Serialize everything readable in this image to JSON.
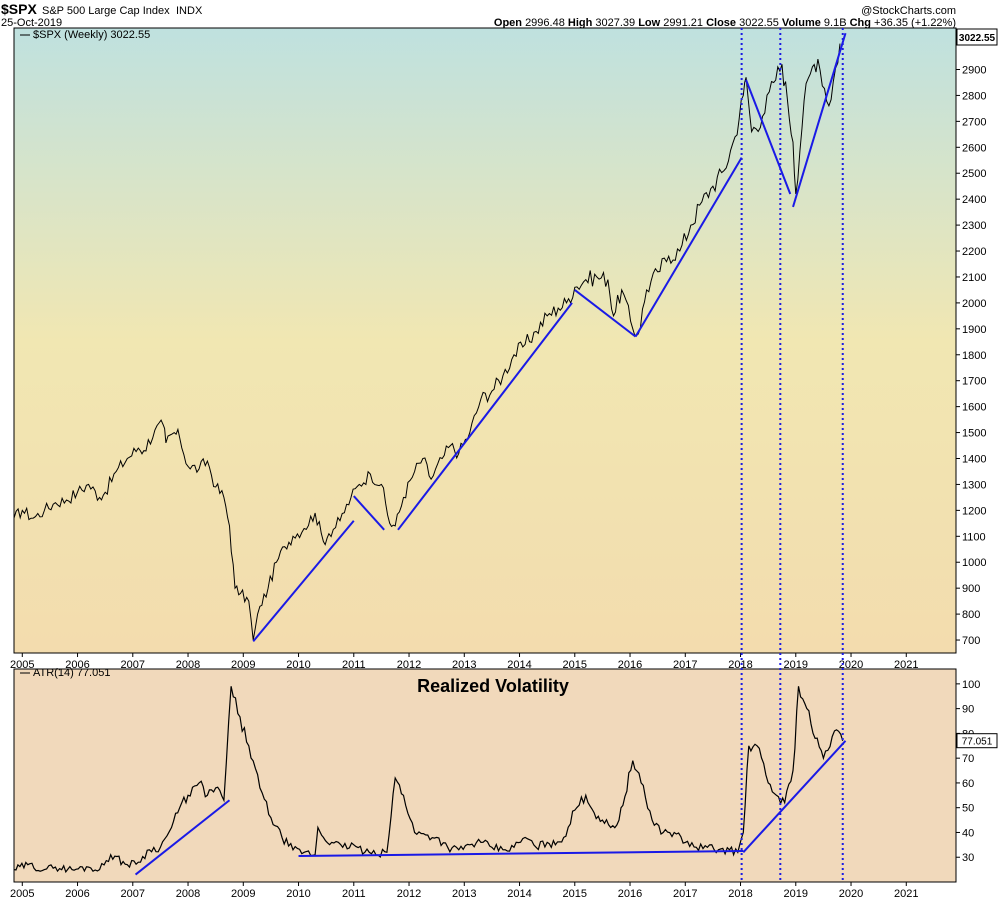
{
  "header": {
    "symbol": "$SPX",
    "name": "S&P 500 Large Cap Index",
    "exchange": "INDX",
    "date": "25-Oct-2019",
    "watermark": "@StockCharts.com",
    "stats": [
      {
        "label": "Open",
        "value": "2996.48"
      },
      {
        "label": "High",
        "value": "3027.39"
      },
      {
        "label": "Low",
        "value": "2991.21"
      },
      {
        "label": "Close",
        "value": "3022.55"
      },
      {
        "label": "Volume",
        "value": "9.1B"
      },
      {
        "label": "Chg",
        "value": "+36.35 (+1.22%)"
      }
    ]
  },
  "colors": {
    "trendline": "#1a1ae6",
    "price_line": "#000000",
    "last_value_box": "#ffffff"
  },
  "chart_data": [
    {
      "type": "line",
      "legend": "$SPX (Weekly) 3022.55",
      "last_value_label": "3022.55",
      "ylim": [
        650,
        3060
      ],
      "yticks": [
        700,
        800,
        900,
        1000,
        1100,
        1200,
        1300,
        1400,
        1500,
        1600,
        1700,
        1800,
        1900,
        2000,
        2100,
        2200,
        2300,
        2400,
        2500,
        2600,
        2700,
        2800,
        2900
      ],
      "xlim": [
        2004.85,
        2021.9
      ],
      "xticks": [
        "2005",
        "2006",
        "2007",
        "2008",
        "2009",
        "2010",
        "2011",
        "2012",
        "2013",
        "2014",
        "2015",
        "2016",
        "2017",
        "2018",
        "2019",
        "2020",
        "2021"
      ],
      "background": "gradient: teal (top) to yellow (bottom)",
      "series": [
        {
          "x": [
            2004.85,
            2005.0,
            2005.2,
            2005.4,
            2005.6,
            2005.8,
            2006.0,
            2006.2,
            2006.4,
            2006.5,
            2006.7,
            2006.9,
            2007.1,
            2007.2,
            2007.4,
            2007.55,
            2007.6,
            2007.75,
            2007.85,
            2008.0,
            2008.2,
            2008.35,
            2008.5,
            2008.65,
            2008.75,
            2008.85,
            2008.95,
            2009.1,
            2009.18,
            2009.3,
            2009.45,
            2009.6,
            2009.75,
            2009.9,
            2010.1,
            2010.3,
            2010.45,
            2010.55,
            2010.75,
            2010.95,
            2011.1,
            2011.3,
            2011.5,
            2011.65,
            2011.75,
            2011.9,
            2012.1,
            2012.25,
            2012.4,
            2012.6,
            2012.75,
            2012.9,
            2013.1,
            2013.3,
            2013.5,
            2013.7,
            2013.9,
            2014.1,
            2014.3,
            2014.5,
            2014.7,
            2014.85,
            2015.0,
            2015.2,
            2015.4,
            2015.6,
            2015.7,
            2015.85,
            2016.05,
            2016.15,
            2016.3,
            2016.5,
            2016.7,
            2016.9,
            2017.1,
            2017.3,
            2017.5,
            2017.7,
            2017.9,
            2018.05,
            2018.1,
            2018.2,
            2018.4,
            2018.6,
            2018.75,
            2018.85,
            2018.95,
            2019.0,
            2019.15,
            2019.3,
            2019.4,
            2019.6,
            2019.8
          ],
          "y": [
            1170,
            1200,
            1170,
            1200,
            1230,
            1240,
            1270,
            1300,
            1250,
            1270,
            1350,
            1400,
            1440,
            1430,
            1510,
            1530,
            1460,
            1500,
            1480,
            1370,
            1360,
            1390,
            1290,
            1250,
            1140,
            900,
            880,
            850,
            700,
            830,
            900,
            1000,
            1060,
            1100,
            1130,
            1190,
            1080,
            1110,
            1160,
            1250,
            1300,
            1340,
            1300,
            1150,
            1140,
            1250,
            1350,
            1400,
            1320,
            1400,
            1450,
            1420,
            1500,
            1630,
            1660,
            1720,
            1800,
            1840,
            1890,
            1950,
            1980,
            2000,
            2060,
            2090,
            2100,
            2090,
            1950,
            2050,
            1900,
            1880,
            2050,
            2120,
            2180,
            2200,
            2300,
            2390,
            2450,
            2510,
            2640,
            2800,
            2870,
            2660,
            2720,
            2850,
            2920,
            2780,
            2620,
            2420,
            2780,
            2910,
            2940,
            2760,
            3000
          ]
        }
      ],
      "trendlines": [
        {
          "x1": 2009.18,
          "y1": 695,
          "x2": 2011.0,
          "y2": 1160
        },
        {
          "x1": 2011.0,
          "y1": 1255,
          "x2": 2011.55,
          "y2": 1125
        },
        {
          "x1": 2011.8,
          "y1": 1125,
          "x2": 2014.95,
          "y2": 2000
        },
        {
          "x1": 2015.0,
          "y1": 2050,
          "x2": 2016.1,
          "y2": 1870
        },
        {
          "x1": 2016.1,
          "y1": 1870,
          "x2": 2018.02,
          "y2": 2560
        },
        {
          "x1": 2018.1,
          "y1": 2860,
          "x2": 2018.9,
          "y2": 2420
        },
        {
          "x1": 2018.95,
          "y1": 2370,
          "x2": 2019.9,
          "y2": 3040
        }
      ]
    },
    {
      "type": "line",
      "title": "Realized Volatility",
      "legend": "ATR(14) 77.051",
      "last_value_label": "77.051",
      "ylim": [
        20,
        106
      ],
      "yticks": [
        30,
        40,
        50,
        60,
        70,
        80,
        90,
        100
      ],
      "xlim": [
        2004.85,
        2021.9
      ],
      "xticks": [
        "2005",
        "2006",
        "2007",
        "2008",
        "2009",
        "2010",
        "2011",
        "2012",
        "2013",
        "2014",
        "2015",
        "2016",
        "2017",
        "2018",
        "2019",
        "2020",
        "2021"
      ],
      "background": "peach",
      "series": [
        {
          "x": [
            2004.85,
            2005.1,
            2005.4,
            2005.6,
            2005.9,
            2006.2,
            2006.4,
            2006.6,
            2006.9,
            2007.1,
            2007.3,
            2007.5,
            2007.7,
            2007.85,
            2008.0,
            2008.2,
            2008.35,
            2008.5,
            2008.65,
            2008.78,
            2008.9,
            2009.1,
            2009.3,
            2009.5,
            2009.7,
            2009.9,
            2010.1,
            2010.3,
            2010.35,
            2010.45,
            2010.6,
            2010.8,
            2011.0,
            2011.2,
            2011.4,
            2011.6,
            2011.75,
            2011.9,
            2012.1,
            2012.3,
            2012.5,
            2012.7,
            2012.9,
            2013.1,
            2013.3,
            2013.5,
            2013.7,
            2013.9,
            2014.1,
            2014.3,
            2014.5,
            2014.65,
            2014.8,
            2015.0,
            2015.2,
            2015.35,
            2015.5,
            2015.65,
            2015.8,
            2016.05,
            2016.2,
            2016.4,
            2016.6,
            2016.8,
            2017.0,
            2017.2,
            2017.4,
            2017.6,
            2017.8,
            2017.95,
            2018.05,
            2018.15,
            2018.3,
            2018.5,
            2018.65,
            2018.8,
            2018.95,
            2019.05,
            2019.2,
            2019.35,
            2019.5,
            2019.7,
            2019.85
          ],
          "y": [
            25,
            27,
            25,
            26,
            25,
            26,
            25,
            31,
            27,
            28,
            33,
            34,
            42,
            50,
            55,
            60,
            55,
            58,
            53,
            99,
            88,
            75,
            58,
            46,
            38,
            33,
            32,
            31,
            42,
            38,
            36,
            34,
            35,
            32,
            31,
            32,
            62,
            55,
            40,
            39,
            38,
            34,
            33,
            35,
            36,
            34,
            33,
            34,
            38,
            34,
            36,
            35,
            38,
            49,
            55,
            48,
            45,
            42,
            45,
            69,
            60,
            45,
            40,
            40,
            36,
            34,
            34,
            33,
            33,
            32,
            40,
            75,
            75,
            60,
            55,
            52,
            65,
            99,
            90,
            78,
            70,
            81,
            77
          ]
        }
      ],
      "trendlines": [
        {
          "x1": 2007.05,
          "y1": 23,
          "x2": 2008.75,
          "y2": 53
        },
        {
          "x1": 2010.0,
          "y1": 30.5,
          "x2": 2018.05,
          "y2": 32.5
        },
        {
          "x1": 2018.05,
          "y1": 32,
          "x2": 2019.9,
          "y2": 77
        }
      ],
      "vertical_markers_x": [
        2018.02,
        2018.72,
        2019.85
      ]
    }
  ]
}
